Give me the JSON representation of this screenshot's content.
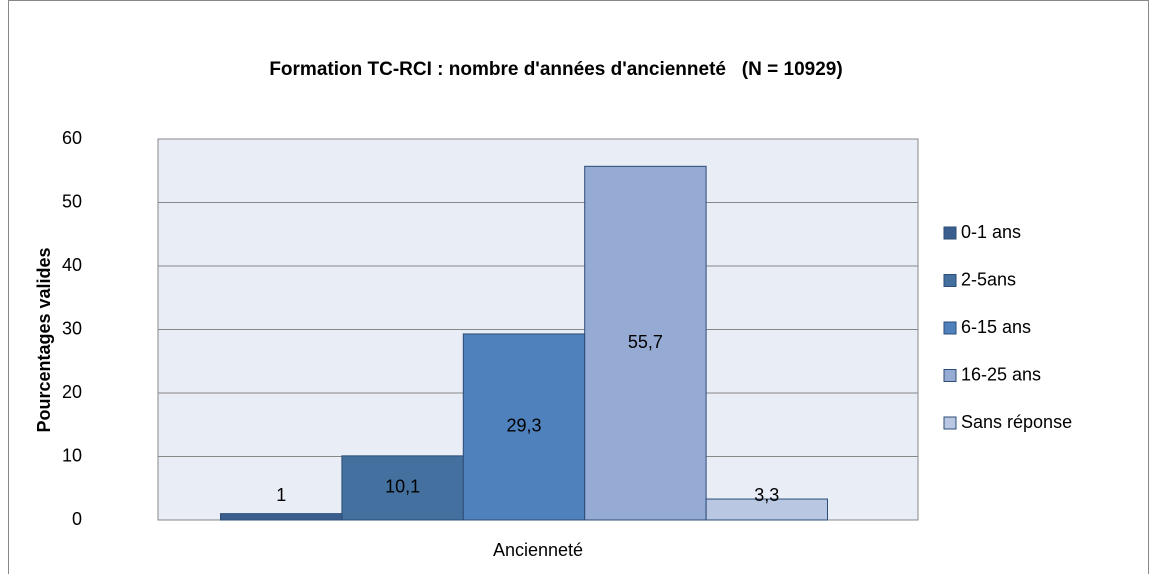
{
  "chart_data": {
    "type": "bar",
    "title": "Formation TC-RCI : nombre d'années d'ancienneté   (N = 10929)",
    "x_label": "Ancienneté",
    "y_label": "Pourcentages valides",
    "categories": [
      "Ancienneté"
    ],
    "series": [
      {
        "name": "0-1 ans",
        "color": "#3a5f8f",
        "values": [
          1
        ],
        "value_labels": [
          "1"
        ]
      },
      {
        "name": "2-5ans",
        "color": "#44709f",
        "values": [
          10.1
        ],
        "value_labels": [
          "10,1"
        ]
      },
      {
        "name": "6-15 ans",
        "color": "#4f81bd",
        "values": [
          29.3
        ],
        "value_labels": [
          "29,3"
        ]
      },
      {
        "name": "16-25 ans",
        "color": "#95abd3",
        "values": [
          55.7
        ],
        "value_labels": [
          "55,7"
        ]
      },
      {
        "name": "Sans réponse",
        "color": "#b9c7e3",
        "values": [
          3.3
        ],
        "value_labels": [
          "3,3"
        ]
      }
    ],
    "ylim": [
      0,
      60
    ],
    "yticks": [
      0,
      10,
      20,
      30,
      40,
      50,
      60
    ],
    "grid": true,
    "legend": "right"
  }
}
